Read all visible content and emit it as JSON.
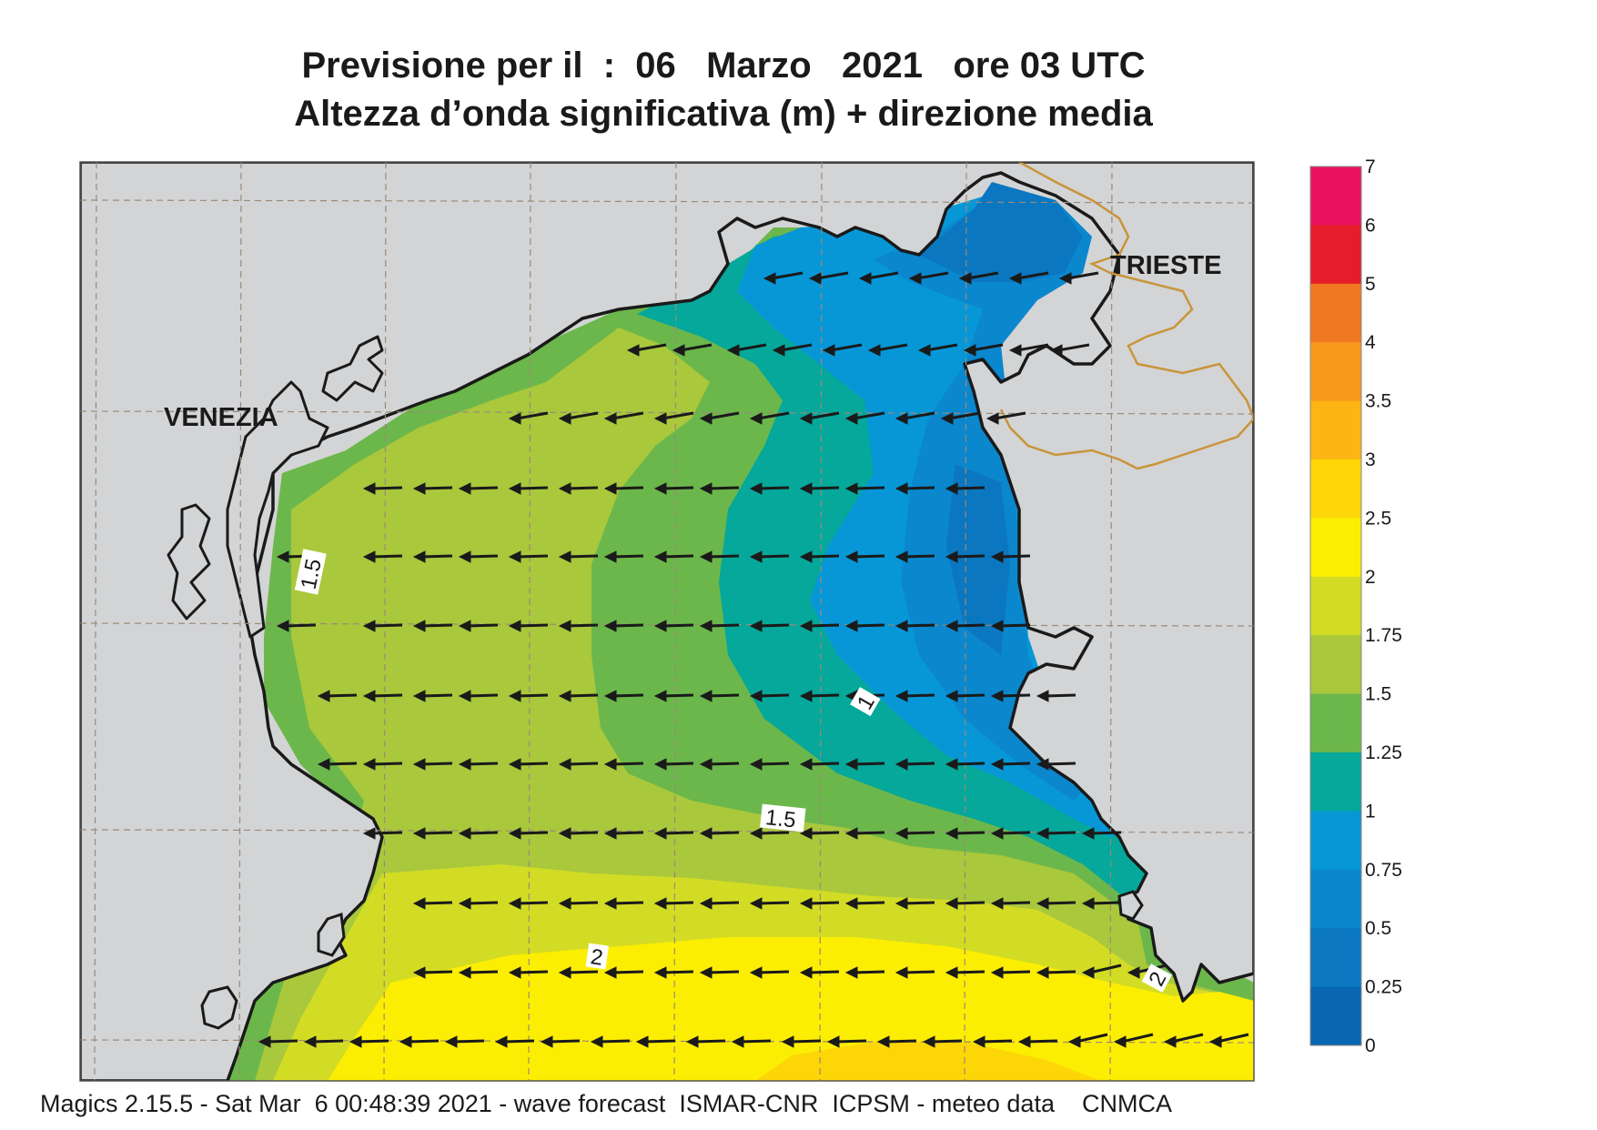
{
  "title": {
    "line1": "Previsione per il  :  06   Marzo   2021   ore 03 UTC",
    "line2": "Altezza d’onda significativa (m) + direzione media"
  },
  "map": {
    "cities": [
      "VENEZIA",
      "TRIESTE"
    ],
    "contour_labels": [
      "1.5",
      "1",
      "1.5",
      "2",
      "2"
    ],
    "land_color": "#d3d4d6",
    "coast_color": "#1a1a1a",
    "border_color": "#c8953a",
    "arrow_color": "#1a1a1a",
    "arrow_direction": "west"
  },
  "legend": {
    "labels": [
      "7",
      "6",
      "5",
      "4",
      "3.5",
      "3",
      "2.5",
      "2",
      "1.75",
      "1.5",
      "1.25",
      "1",
      "0.75",
      "0.5",
      "0.25",
      "0"
    ],
    "colors": [
      "#e9125f",
      "#e61c2a",
      "#f07823",
      "#f8991d",
      "#fdb515",
      "#fdd608",
      "#fcee02",
      "#d3dc24",
      "#a9c83c",
      "#6cb74b",
      "#05a89a",
      "#0797d7",
      "#0b87cd",
      "#0b77c0",
      "#0867b0"
    ]
  },
  "footer": "Magics 2.15.5 - Sat Mar  6 00:48:39 2021 - wave forecast  ISMAR-CNR  ICPSM - meteo data    CNMCA"
}
